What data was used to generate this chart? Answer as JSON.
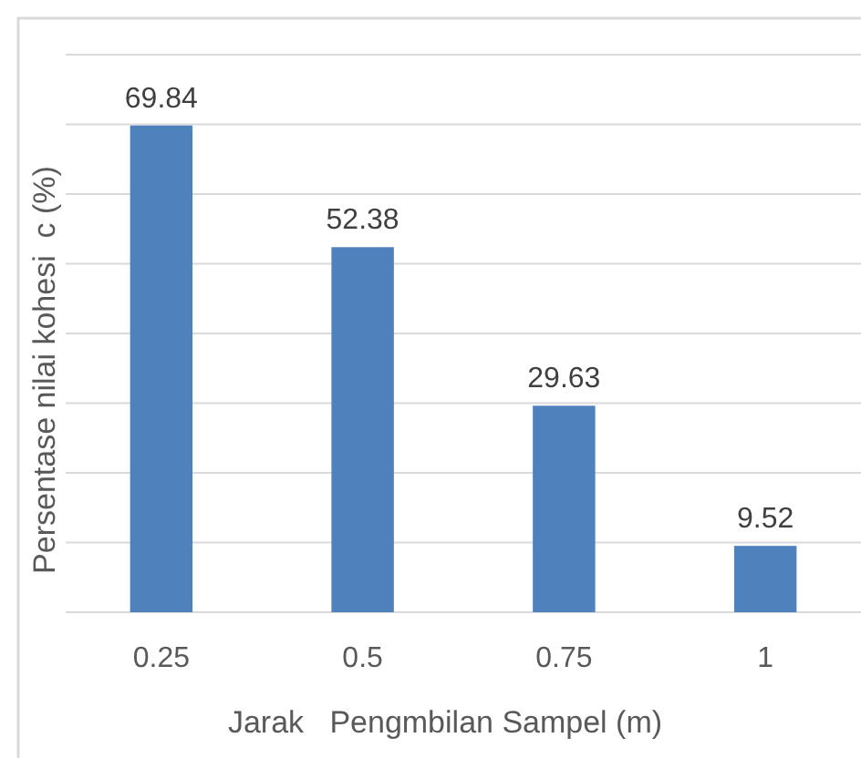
{
  "chart_data": {
    "type": "bar",
    "xlabel": "Jarak   Pengmbilan Sampel (m)",
    "ylabel": "Persentase nilai kohesi  c (%)",
    "categories": [
      "0.25",
      "0.5",
      "0.75",
      "1"
    ],
    "values": [
      69.84,
      52.38,
      29.63,
      9.52
    ],
    "color": "#4f81bd",
    "data_labels": true,
    "ylim": [
      0,
      80
    ],
    "yticks": [
      {
        "value": 0,
        "label": null
      },
      {
        "value": 10,
        "label": null
      },
      {
        "value": 20,
        "label": null
      },
      {
        "value": 30,
        "label": null
      },
      {
        "value": 40,
        "label": null
      },
      {
        "value": 50,
        "label": null
      },
      {
        "value": 60,
        "label": null
      },
      {
        "value": 70,
        "label": null
      },
      {
        "value": 80,
        "label": null
      }
    ],
    "grid": "y",
    "tick_labels": "x"
  }
}
